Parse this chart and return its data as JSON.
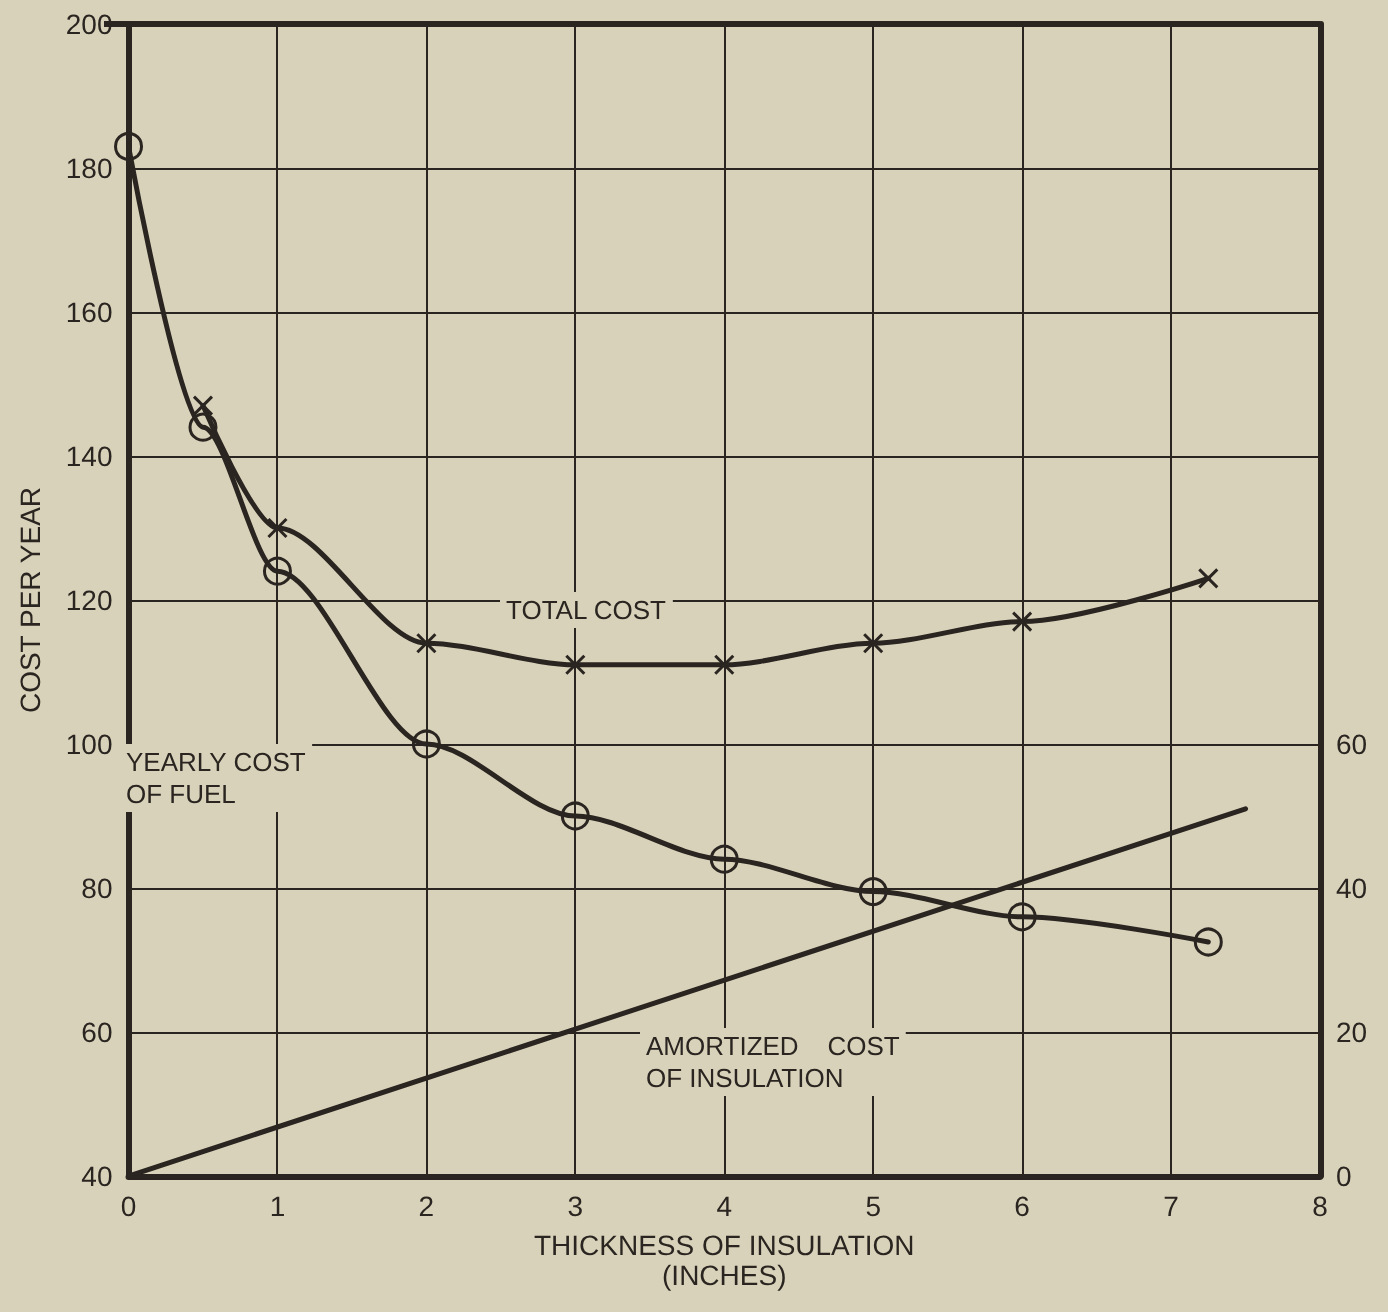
{
  "chart_data": {
    "type": "line",
    "xlabel": "THICKNESS OF INSULATION\n(INCHES)",
    "ylabel": "COST PER YEAR",
    "series": [
      {
        "color": "#2a2520",
        "marker": "cross",
        "x": [
          0.5,
          1,
          2,
          3,
          4,
          5,
          6,
          7.25
        ],
        "values": [
          147,
          130,
          114,
          111,
          111,
          114,
          117,
          123
        ]
      },
      {
        "color": "#2a2520",
        "marker": "circle",
        "x": [
          0,
          0.5,
          1,
          2,
          3,
          4,
          5,
          6,
          7.25
        ],
        "values": [
          183,
          144,
          124,
          100,
          90,
          84,
          79.5,
          76,
          72.5
        ]
      },
      {
        "color": "#2a2520",
        "marker": "none",
        "axis": "y2",
        "x": [
          0,
          7.5
        ],
        "values": [
          0,
          51
        ]
      }
    ],
    "xlim": [
      0,
      8
    ],
    "xticks": [
      0,
      1,
      2,
      3,
      4,
      5,
      6,
      7,
      8
    ],
    "ylim": [
      40,
      200
    ],
    "yticks": [
      40,
      60,
      80,
      100,
      120,
      140,
      160,
      180,
      200
    ],
    "y2lim": [
      0,
      160
    ],
    "y2ticks": [
      0,
      20,
      40,
      60
    ],
    "annotations": [
      "TOTAL COST",
      "YEARLY COST\nOF FUEL",
      "AMORTIZED    COST\nOF INSULATION"
    ],
    "grid": true,
    "line_style": "solid"
  }
}
